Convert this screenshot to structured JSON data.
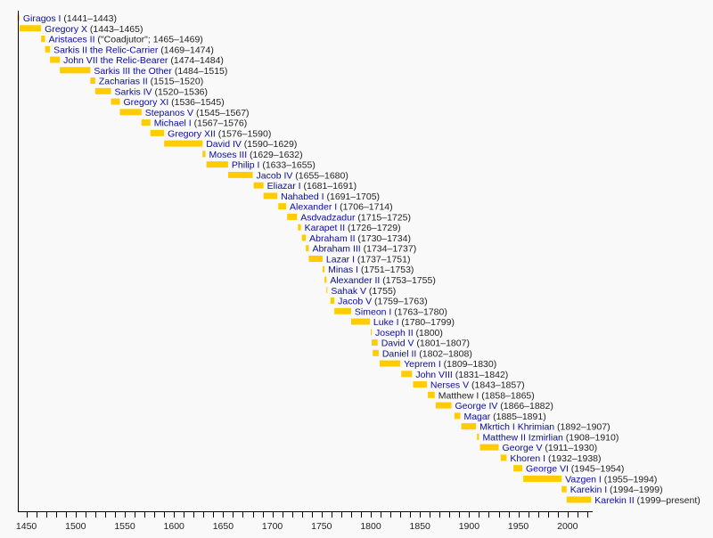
{
  "chart_data": {
    "type": "timeline",
    "xlim": [
      1440,
      2024
    ],
    "x_ticks": [
      1450,
      1500,
      1550,
      1600,
      1650,
      1700,
      1750,
      1800,
      1850,
      1900,
      1950,
      2000
    ],
    "minor_tick_step": 10,
    "bar_color": "#ffcc00",
    "link_color": "#0b0b9e",
    "present_year": 2024,
    "entries": [
      {
        "name": "Giragos I",
        "dates": "(1441–1443)",
        "start": 1441,
        "end": 1443,
        "link": true
      },
      {
        "name": "Gregory X",
        "dates": "(1443–1465)",
        "start": 1443,
        "end": 1465,
        "link": true
      },
      {
        "name": "Aristaces II",
        "dates": "(\"Coadjutor\"; 1465–1469)",
        "start": 1465,
        "end": 1469,
        "link": true
      },
      {
        "name": "Sarkis II the Relic-Carrier",
        "dates": "(1469–1474)",
        "start": 1469,
        "end": 1474,
        "link": true
      },
      {
        "name": "John VII the Relic-Bearer",
        "dates": "(1474–1484)",
        "start": 1474,
        "end": 1484,
        "link": true
      },
      {
        "name": "Sarkis III the Other",
        "dates": "(1484–1515)",
        "start": 1484,
        "end": 1515,
        "link": true
      },
      {
        "name": "Zacharias II",
        "dates": "(1515–1520)",
        "start": 1515,
        "end": 1520,
        "link": true
      },
      {
        "name": "Sarkis IV",
        "dates": "(1520–1536)",
        "start": 1520,
        "end": 1536,
        "link": true
      },
      {
        "name": "Gregory XI",
        "dates": "(1536–1545)",
        "start": 1536,
        "end": 1545,
        "link": true
      },
      {
        "name": "Stepanos V",
        "dates": "(1545–1567)",
        "start": 1545,
        "end": 1567,
        "link": true
      },
      {
        "name": "Michael I",
        "dates": "(1567–1576)",
        "start": 1567,
        "end": 1576,
        "link": true
      },
      {
        "name": "Gregory XII",
        "dates": "(1576–1590)",
        "start": 1576,
        "end": 1590,
        "link": true
      },
      {
        "name": "David IV",
        "dates": "(1590–1629)",
        "start": 1590,
        "end": 1629,
        "link": true
      },
      {
        "name": "Moses III",
        "dates": "(1629–1632)",
        "start": 1629,
        "end": 1632,
        "link": true
      },
      {
        "name": "Philip I",
        "dates": "(1633–1655)",
        "start": 1633,
        "end": 1655,
        "link": true
      },
      {
        "name": "Jacob IV",
        "dates": "(1655–1680)",
        "start": 1655,
        "end": 1680,
        "link": true
      },
      {
        "name": "Eliazar I",
        "dates": "(1681–1691)",
        "start": 1681,
        "end": 1691,
        "link": true
      },
      {
        "name": "Nahabed I",
        "dates": "(1691–1705)",
        "start": 1691,
        "end": 1705,
        "link": true
      },
      {
        "name": "Alexander I",
        "dates": "(1706–1714)",
        "start": 1706,
        "end": 1714,
        "link": true
      },
      {
        "name": "Asdvadzadur",
        "dates": "(1715–1725)",
        "start": 1715,
        "end": 1725,
        "link": true
      },
      {
        "name": "Karapet II",
        "dates": "(1726–1729)",
        "start": 1726,
        "end": 1729,
        "link": true
      },
      {
        "name": "Abraham II",
        "dates": "(1730–1734)",
        "start": 1730,
        "end": 1734,
        "link": true
      },
      {
        "name": "Abraham III",
        "dates": "(1734–1737)",
        "start": 1734,
        "end": 1737,
        "link": true
      },
      {
        "name": "Lazar I",
        "dates": "(1737–1751)",
        "start": 1737,
        "end": 1751,
        "link": true
      },
      {
        "name": "Minas I",
        "dates": "(1751–1753)",
        "start": 1751,
        "end": 1753,
        "link": true
      },
      {
        "name": "Alexander II",
        "dates": "(1753–1755)",
        "start": 1753,
        "end": 1755,
        "link": true
      },
      {
        "name": "Sahak V",
        "dates": "(1755)",
        "start": 1755,
        "end": 1755,
        "link": true
      },
      {
        "name": "Jacob V",
        "dates": "(1759–1763)",
        "start": 1759,
        "end": 1763,
        "link": true
      },
      {
        "name": "Simeon I",
        "dates": "(1763–1780)",
        "start": 1763,
        "end": 1780,
        "link": true
      },
      {
        "name": "Luke I",
        "dates": "(1780–1799)",
        "start": 1780,
        "end": 1799,
        "link": true
      },
      {
        "name": "Joseph II",
        "dates": "(1800)",
        "start": 1800,
        "end": 1800,
        "link": true
      },
      {
        "name": "David V",
        "dates": "(1801–1807)",
        "start": 1801,
        "end": 1807,
        "link": true
      },
      {
        "name": "Daniel II",
        "dates": "(1802–1808)",
        "start": 1802,
        "end": 1808,
        "link": true
      },
      {
        "name": "Yeprem I",
        "dates": "(1809–1830)",
        "start": 1809,
        "end": 1830,
        "link": true
      },
      {
        "name": "John VIII",
        "dates": "(1831–1842)",
        "start": 1831,
        "end": 1842,
        "link": true
      },
      {
        "name": "Nerses V",
        "dates": "(1843–1857)",
        "start": 1843,
        "end": 1857,
        "link": true
      },
      {
        "name": "Matthew I",
        "dates": "(1858–1865)",
        "start": 1858,
        "end": 1865,
        "link": false
      },
      {
        "name": "George IV",
        "dates": "(1866–1882)",
        "start": 1866,
        "end": 1882,
        "link": true
      },
      {
        "name": "Magar",
        "dates": "(1885–1891)",
        "start": 1885,
        "end": 1891,
        "link": true
      },
      {
        "name": "Mkrtich I Khrimian",
        "dates": "(1892–1907)",
        "start": 1892,
        "end": 1907,
        "link": true
      },
      {
        "name": "Matthew II Izmirlian",
        "dates": "(1908–1910)",
        "start": 1908,
        "end": 1910,
        "link": true
      },
      {
        "name": "George V",
        "dates": "(1911–1930)",
        "start": 1911,
        "end": 1930,
        "link": true
      },
      {
        "name": "Khoren I",
        "dates": "(1932–1938)",
        "start": 1932,
        "end": 1938,
        "link": true
      },
      {
        "name": "George VI",
        "dates": "(1945–1954)",
        "start": 1945,
        "end": 1954,
        "link": true
      },
      {
        "name": "Vazgen I",
        "dates": "(1955–1994)",
        "start": 1955,
        "end": 1994,
        "link": true
      },
      {
        "name": "Karekin I",
        "dates": "(1994–1999)",
        "start": 1994,
        "end": 1999,
        "link": true
      },
      {
        "name": "Karekin II",
        "dates": "(1999–present)",
        "start": 1999,
        "end": 2024,
        "link": true
      }
    ]
  }
}
